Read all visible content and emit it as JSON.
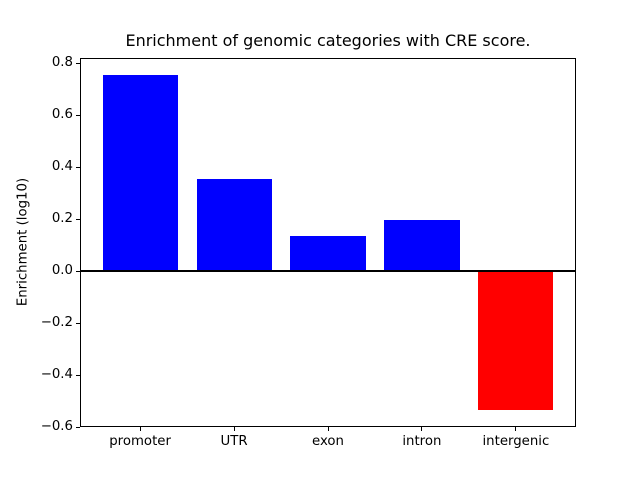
{
  "chart_data": {
    "type": "bar",
    "title": "Enrichment of genomic categories with CRE score.",
    "xlabel": "",
    "ylabel": "Enrichment (log10)",
    "categories": [
      "promoter",
      "UTR",
      "exon",
      "intron",
      "intergenic"
    ],
    "values": [
      0.755,
      0.355,
      0.135,
      0.195,
      -0.535
    ],
    "bar_colors": [
      "#0000ff",
      "#0000ff",
      "#0000ff",
      "#0000ff",
      "#ff0000"
    ],
    "positive_color": "#0000ff",
    "negative_color": "#ff0000",
    "yticks": [
      0.8,
      0.6,
      0.4,
      0.2,
      0.0,
      -0.2,
      -0.4,
      -0.6
    ],
    "ylim": [
      -0.6,
      0.82
    ],
    "zero_line": {
      "y": 0.0,
      "color": "#000000"
    },
    "bar_relative_width": 0.8,
    "grid": false,
    "legend_position": "none",
    "background_color": "#ffffff"
  }
}
